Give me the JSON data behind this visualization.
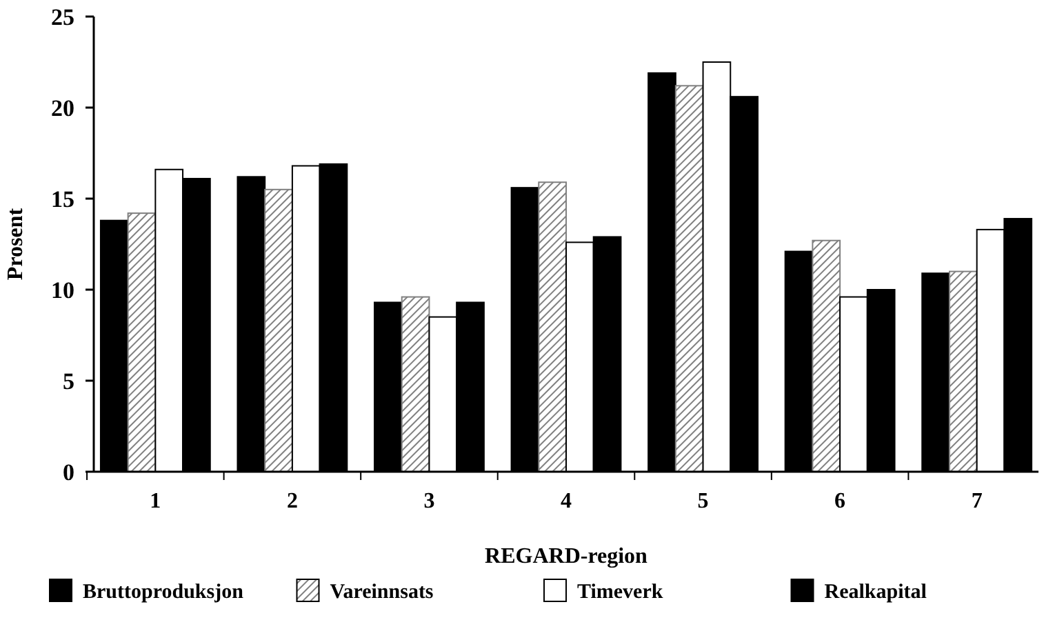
{
  "chart_data": {
    "type": "bar",
    "xlabel": "REGARD-region",
    "ylabel": "Prosent",
    "categories": [
      "1",
      "2",
      "3",
      "4",
      "5",
      "6",
      "7"
    ],
    "series": [
      {
        "name": "Bruttoproduksjon",
        "color": "#000000",
        "values": [
          13.8,
          16.2,
          9.3,
          15.6,
          21.9,
          12.1,
          10.9
        ]
      },
      {
        "name": "Vareinnsats",
        "color": "#808080",
        "values": [
          14.2,
          15.5,
          9.6,
          15.9,
          21.2,
          12.7,
          11.0
        ]
      },
      {
        "name": "Timeverk",
        "color": "#ffffff",
        "values": [
          16.6,
          16.8,
          8.5,
          12.6,
          22.5,
          9.6,
          13.3
        ]
      },
      {
        "name": "Realkapital",
        "color": "#000000",
        "values": [
          16.1,
          16.9,
          9.3,
          12.9,
          20.6,
          10.0,
          13.9
        ]
      }
    ],
    "ylim": [
      0,
      25
    ],
    "yticks": [
      0,
      5,
      10,
      15,
      20,
      25
    ],
    "grid": false,
    "legend": "bottom"
  }
}
